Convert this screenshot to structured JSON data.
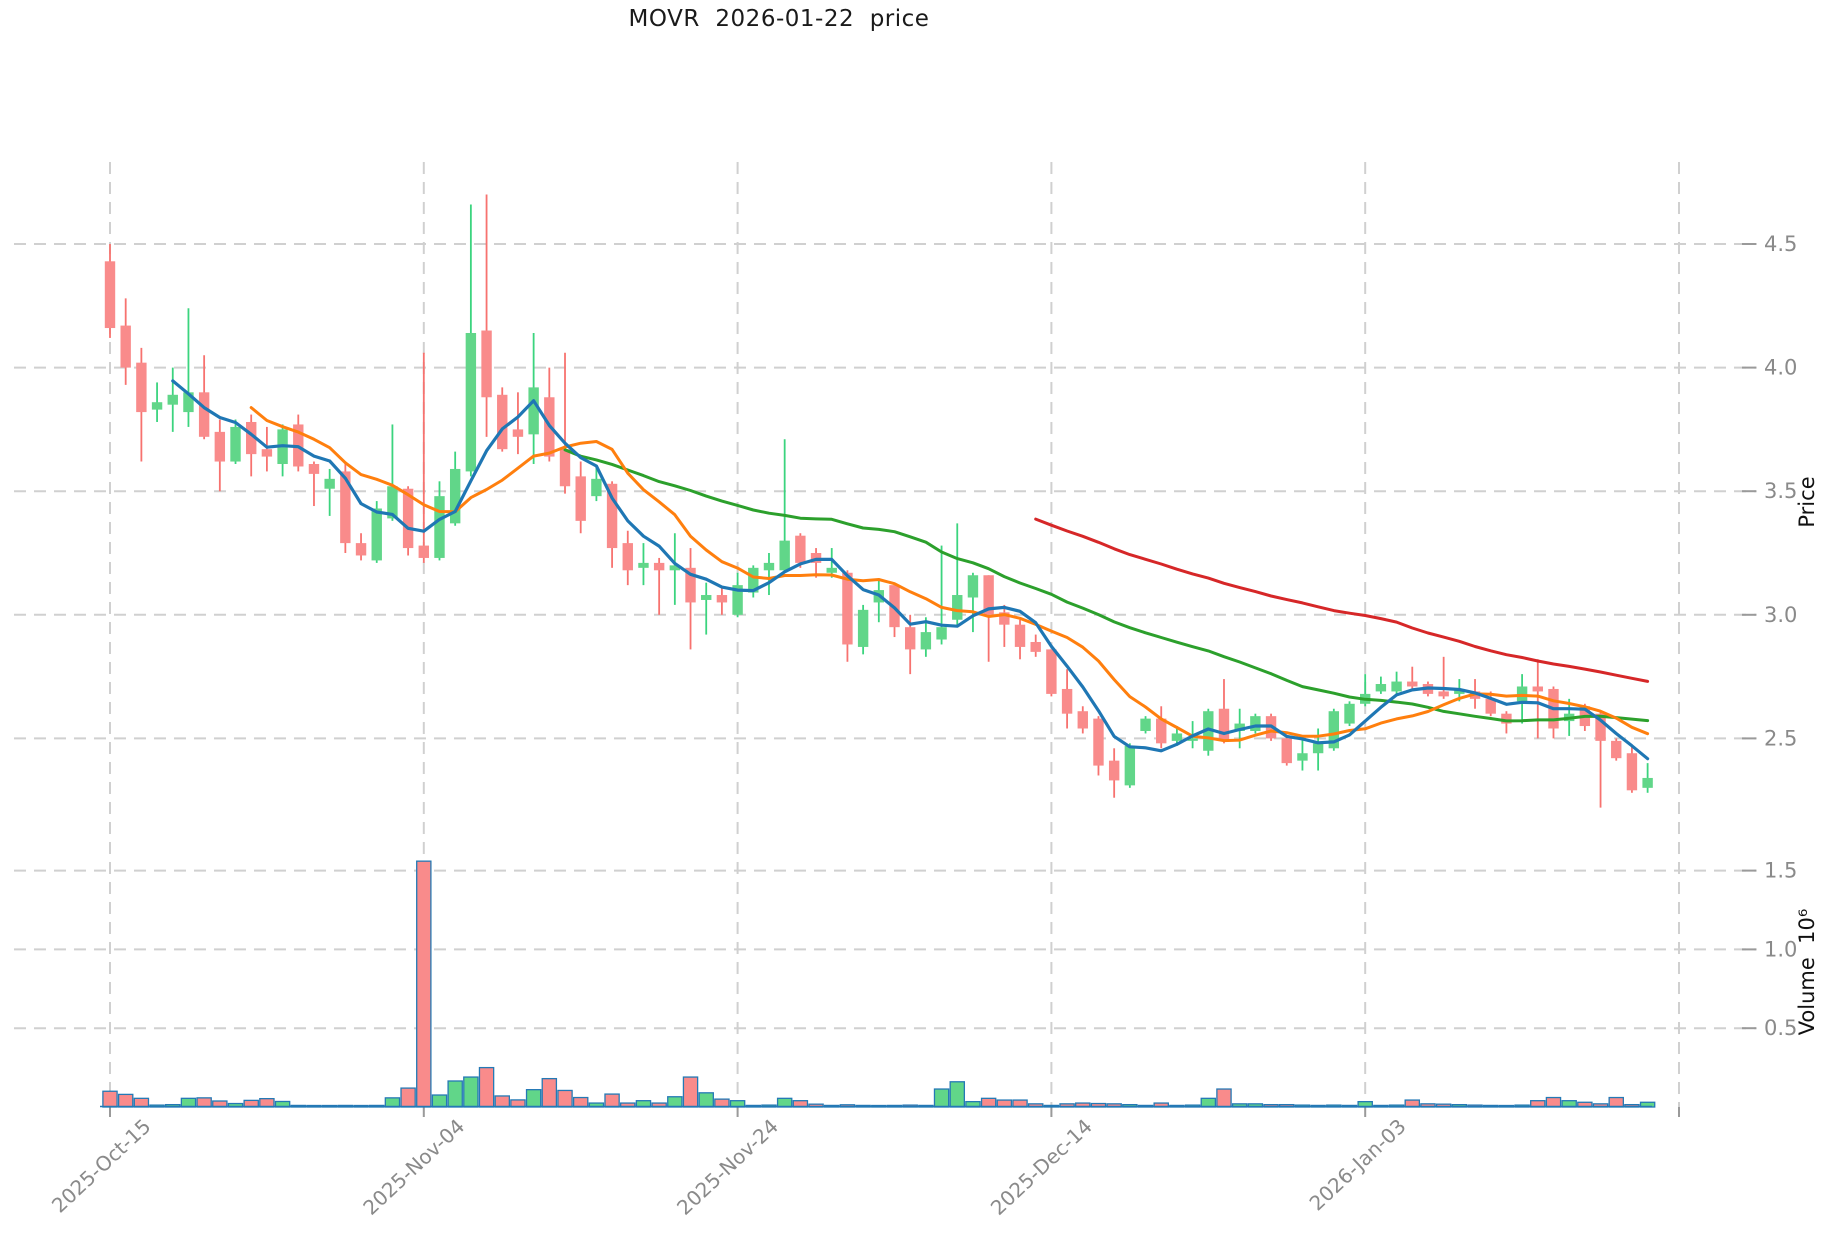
{
  "title": "MOVR  2026-01-22  price",
  "axes": {
    "price_label": "Price",
    "volume_label": "Volume  10⁶",
    "price_ticks": [
      "4.5",
      "4.0",
      "3.5",
      "3.0",
      "2.5"
    ],
    "volume_ticks": [
      "1.5",
      "1.0",
      "0.5"
    ],
    "x_ticks": [
      {
        "index": 0,
        "label": "2025-Oct-15"
      },
      {
        "index": 20,
        "label": "2025-Nov-04"
      },
      {
        "index": 40,
        "label": "2025-Nov-24"
      },
      {
        "index": 60,
        "label": "2025-Dec-14"
      },
      {
        "index": 80,
        "label": "2026-Jan-03"
      },
      {
        "index": 100,
        "label": ""
      }
    ]
  },
  "chart_data": {
    "type": "candlestick",
    "symbol": "MOVR",
    "as_of_date": "2026-01-22",
    "legend_position": "none",
    "grid": "dashed",
    "price_axis": {
      "min": 2.02,
      "max": 4.84,
      "gridlines": [
        4.5,
        4.0,
        3.5,
        3.0,
        2.5
      ],
      "label": "Price"
    },
    "volume_axis": {
      "min": 0,
      "max": 1.6,
      "unit": "10^6",
      "gridlines": [
        1.5,
        1.0,
        0.5
      ],
      "label": "Volume 10^6"
    },
    "columns": [
      "open",
      "high",
      "low",
      "close",
      "volume_millions"
    ],
    "candles": [
      [
        4.43,
        4.5,
        4.12,
        4.16,
        0.1
      ],
      [
        4.17,
        4.28,
        3.93,
        4.0,
        0.08
      ],
      [
        4.02,
        4.08,
        3.62,
        3.82,
        0.055
      ],
      [
        3.83,
        3.94,
        3.78,
        3.86,
        0.012
      ],
      [
        3.85,
        4.0,
        3.74,
        3.89,
        0.015
      ],
      [
        3.82,
        4.24,
        3.76,
        3.9,
        0.055
      ],
      [
        3.9,
        4.05,
        3.71,
        3.72,
        0.058
      ],
      [
        3.74,
        3.79,
        3.5,
        3.62,
        0.038
      ],
      [
        3.62,
        3.79,
        3.61,
        3.76,
        0.022
      ],
      [
        3.78,
        3.81,
        3.56,
        3.65,
        0.042
      ],
      [
        3.67,
        3.76,
        3.58,
        3.64,
        0.053
      ],
      [
        3.61,
        3.77,
        3.56,
        3.75,
        0.035
      ],
      [
        3.77,
        3.81,
        3.58,
        3.6,
        0.01
      ],
      [
        3.61,
        3.62,
        3.44,
        3.57,
        0.008
      ],
      [
        3.51,
        3.59,
        3.4,
        3.55,
        0.008
      ],
      [
        3.58,
        3.62,
        3.25,
        3.29,
        0.01
      ],
      [
        3.29,
        3.33,
        3.22,
        3.24,
        0.008
      ],
      [
        3.22,
        3.46,
        3.21,
        3.43,
        0.01
      ],
      [
        3.39,
        3.77,
        3.38,
        3.52,
        0.058
      ],
      [
        3.51,
        3.52,
        3.24,
        3.27,
        0.12
      ],
      [
        3.28,
        4.06,
        3.21,
        3.23,
        1.56
      ],
      [
        3.23,
        3.54,
        3.22,
        3.48,
        0.076
      ],
      [
        3.37,
        3.66,
        3.36,
        3.59,
        0.165
      ],
      [
        3.58,
        4.66,
        3.56,
        4.14,
        0.19
      ],
      [
        4.15,
        4.7,
        3.72,
        3.88,
        0.25
      ],
      [
        3.89,
        3.92,
        3.66,
        3.67,
        0.07
      ],
      [
        3.75,
        3.9,
        3.65,
        3.72,
        0.045
      ],
      [
        3.73,
        4.14,
        3.61,
        3.92,
        0.11
      ],
      [
        3.88,
        4.0,
        3.62,
        3.64,
        0.18
      ],
      [
        3.67,
        4.06,
        3.49,
        3.52,
        0.105
      ],
      [
        3.56,
        3.62,
        3.33,
        3.38,
        0.06
      ],
      [
        3.48,
        3.6,
        3.46,
        3.55,
        0.025
      ],
      [
        3.53,
        3.54,
        3.19,
        3.27,
        0.082
      ],
      [
        3.29,
        3.34,
        3.12,
        3.18,
        0.025
      ],
      [
        3.19,
        3.29,
        3.12,
        3.21,
        0.04
      ],
      [
        3.21,
        3.23,
        3.0,
        3.18,
        0.025
      ],
      [
        3.18,
        3.33,
        3.04,
        3.2,
        0.065
      ],
      [
        3.19,
        3.27,
        2.86,
        3.05,
        0.19
      ],
      [
        3.06,
        3.13,
        2.92,
        3.08,
        0.09
      ],
      [
        3.08,
        3.11,
        3.0,
        3.05,
        0.05
      ],
      [
        3.0,
        3.17,
        2.99,
        3.12,
        0.04
      ],
      [
        3.09,
        3.2,
        3.07,
        3.19,
        0.01
      ],
      [
        3.18,
        3.25,
        3.08,
        3.21,
        0.012
      ],
      [
        3.18,
        3.71,
        3.17,
        3.3,
        0.055
      ],
      [
        3.32,
        3.33,
        3.19,
        3.21,
        0.04
      ],
      [
        3.25,
        3.27,
        3.15,
        3.21,
        0.018
      ],
      [
        3.17,
        3.27,
        3.15,
        3.19,
        0.01
      ],
      [
        3.17,
        3.18,
        2.81,
        2.88,
        0.014
      ],
      [
        2.87,
        3.04,
        2.84,
        3.02,
        0.01
      ],
      [
        3.05,
        3.14,
        2.97,
        3.1,
        0.008
      ],
      [
        3.12,
        3.13,
        2.91,
        2.95,
        0.01
      ],
      [
        2.95,
        3.0,
        2.76,
        2.86,
        0.012
      ],
      [
        2.86,
        2.99,
        2.83,
        2.93,
        0.01
      ],
      [
        2.9,
        3.28,
        2.88,
        2.95,
        0.114
      ],
      [
        2.98,
        3.37,
        2.95,
        3.08,
        0.16
      ],
      [
        3.07,
        3.17,
        2.93,
        3.16,
        0.034
      ],
      [
        3.16,
        3.16,
        2.81,
        3.0,
        0.055
      ],
      [
        3.01,
        3.04,
        2.87,
        2.96,
        0.044
      ],
      [
        2.96,
        2.98,
        2.82,
        2.87,
        0.044
      ],
      [
        2.89,
        2.92,
        2.83,
        2.85,
        0.02
      ],
      [
        2.86,
        2.86,
        2.67,
        2.68,
        0.01
      ],
      [
        2.7,
        2.78,
        2.54,
        2.6,
        0.02
      ],
      [
        2.61,
        2.63,
        2.52,
        2.54,
        0.025
      ],
      [
        2.58,
        2.59,
        2.35,
        2.39,
        0.022
      ],
      [
        2.41,
        2.46,
        2.26,
        2.33,
        0.02
      ],
      [
        2.31,
        2.48,
        2.3,
        2.47,
        0.015
      ],
      [
        2.53,
        2.59,
        2.52,
        2.58,
        0.01
      ],
      [
        2.58,
        2.63,
        2.46,
        2.48,
        0.025
      ],
      [
        2.49,
        2.55,
        2.47,
        2.52,
        0.01
      ],
      [
        2.49,
        2.57,
        2.46,
        2.5,
        0.012
      ],
      [
        2.45,
        2.62,
        2.43,
        2.61,
        0.055
      ],
      [
        2.62,
        2.74,
        2.48,
        2.49,
        0.114
      ],
      [
        2.53,
        2.62,
        2.46,
        2.56,
        0.02
      ],
      [
        2.53,
        2.6,
        2.52,
        2.59,
        0.02
      ],
      [
        2.59,
        2.6,
        2.49,
        2.5,
        0.015
      ],
      [
        2.5,
        2.51,
        2.39,
        2.4,
        0.015
      ],
      [
        2.41,
        2.5,
        2.37,
        2.44,
        0.012
      ],
      [
        2.44,
        2.54,
        2.37,
        2.48,
        0.01
      ],
      [
        2.46,
        2.62,
        2.45,
        2.61,
        0.012
      ],
      [
        2.56,
        2.65,
        2.55,
        2.64,
        0.01
      ],
      [
        2.64,
        2.76,
        2.63,
        2.68,
        0.034
      ],
      [
        2.69,
        2.75,
        2.68,
        2.72,
        0.01
      ],
      [
        2.69,
        2.77,
        2.68,
        2.73,
        0.012
      ],
      [
        2.73,
        2.79,
        2.7,
        2.71,
        0.044
      ],
      [
        2.72,
        2.73,
        2.67,
        2.68,
        0.02
      ],
      [
        2.69,
        2.83,
        2.66,
        2.67,
        0.018
      ],
      [
        2.68,
        2.74,
        2.65,
        2.7,
        0.015
      ],
      [
        2.69,
        2.74,
        2.62,
        2.66,
        0.012
      ],
      [
        2.66,
        2.69,
        2.59,
        2.6,
        0.01
      ],
      [
        2.6,
        2.61,
        2.52,
        2.56,
        0.008
      ],
      [
        2.65,
        2.76,
        2.56,
        2.71,
        0.012
      ],
      [
        2.71,
        2.82,
        2.5,
        2.69,
        0.04
      ],
      [
        2.7,
        2.71,
        2.5,
        2.54,
        0.06
      ],
      [
        2.57,
        2.66,
        2.51,
        2.6,
        0.04
      ],
      [
        2.63,
        2.64,
        2.53,
        2.55,
        0.03
      ],
      [
        2.6,
        2.61,
        2.22,
        2.49,
        0.02
      ],
      [
        2.49,
        2.5,
        2.41,
        2.42,
        0.06
      ],
      [
        2.44,
        2.47,
        2.28,
        2.29,
        0.015
      ],
      [
        2.3,
        2.4,
        2.28,
        2.34,
        0.03
      ]
    ],
    "moving_averages": [
      {
        "period": 60,
        "color": "#d62728"
      },
      {
        "period": 30,
        "color": "#2ca02c"
      },
      {
        "period": 10,
        "color": "#ff7f0e"
      },
      {
        "period": 5,
        "color": "#1f77b4"
      }
    ],
    "colors": {
      "up_body": "#61d689",
      "up_wick": "#3bd47e",
      "down_body": "#f98b8b",
      "down_wick": "#f7726f",
      "volume_edge": "#2479b5",
      "grid": "#d0d0d0",
      "tick_mark": "#9a9a9a",
      "tick_text": "#8a8a8a",
      "title_text": "#1a1a1a"
    }
  }
}
